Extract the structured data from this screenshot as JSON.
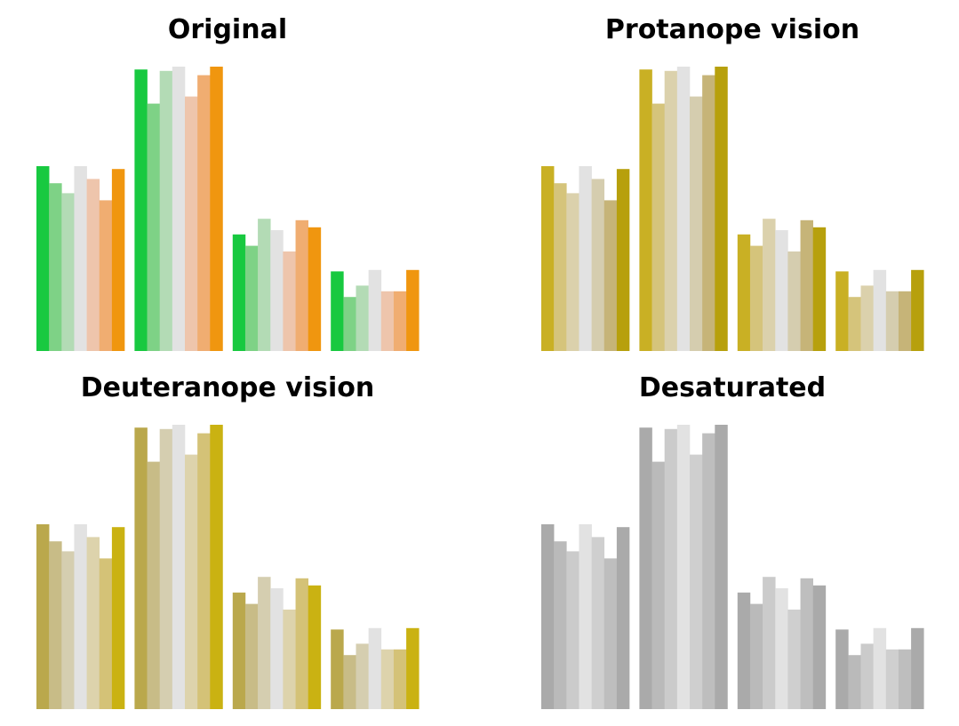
{
  "figure": {
    "panels": [
      {
        "title": "Original"
      },
      {
        "title": "Protanope vision"
      },
      {
        "title": "Deuteranope vision"
      },
      {
        "title": "Desaturated"
      }
    ]
  },
  "chart_data": [
    {
      "type": "bar",
      "title": "Original",
      "categories": [
        "",
        "",
        "",
        ""
      ],
      "ylim": [
        0,
        1.0
      ],
      "grid": false,
      "axes_visible": false,
      "series": [
        {
          "color": "#18c940",
          "values": [
            0.65,
            0.99,
            0.41,
            0.28
          ]
        },
        {
          "color": "#7ed286",
          "values": [
            0.59,
            0.87,
            0.37,
            0.19
          ]
        },
        {
          "color": "#b3dbb5",
          "values": [
            0.555,
            0.985,
            0.465,
            0.23
          ]
        },
        {
          "color": "#e2e2e2",
          "values": [
            0.65,
            1.0,
            0.425,
            0.285
          ]
        },
        {
          "color": "#eec5ac",
          "values": [
            0.605,
            0.895,
            0.35,
            0.21
          ]
        },
        {
          "color": "#f0ad71",
          "values": [
            0.53,
            0.97,
            0.46,
            0.21
          ]
        },
        {
          "color": "#f0960f",
          "values": [
            0.64,
            1.0,
            0.435,
            0.285
          ]
        }
      ]
    },
    {
      "type": "bar",
      "title": "Protanope vision",
      "categories": [
        "",
        "",
        "",
        ""
      ],
      "ylim": [
        0,
        1.0
      ],
      "grid": false,
      "axes_visible": false,
      "series": [
        {
          "color": "#c9b024",
          "values": [
            0.65,
            0.99,
            0.41,
            0.28
          ]
        },
        {
          "color": "#d5c47b",
          "values": [
            0.59,
            0.87,
            0.37,
            0.19
          ]
        },
        {
          "color": "#dbd1ac",
          "values": [
            0.555,
            0.985,
            0.465,
            0.23
          ]
        },
        {
          "color": "#e2e2e2",
          "values": [
            0.65,
            1.0,
            0.425,
            0.285
          ]
        },
        {
          "color": "#d5cdaf",
          "values": [
            0.605,
            0.895,
            0.35,
            0.21
          ]
        },
        {
          "color": "#c6b478",
          "values": [
            0.53,
            0.97,
            0.46,
            0.21
          ]
        },
        {
          "color": "#b7a00c",
          "values": [
            0.64,
            1.0,
            0.435,
            0.285
          ]
        }
      ]
    },
    {
      "type": "bar",
      "title": "Deuteranope vision",
      "categories": [
        "",
        "",
        "",
        ""
      ],
      "ylim": [
        0,
        1.0
      ],
      "grid": false,
      "axes_visible": false,
      "series": [
        {
          "color": "#baa84c",
          "values": [
            0.65,
            0.99,
            0.41,
            0.28
          ]
        },
        {
          "color": "#c8bc87",
          "values": [
            0.59,
            0.87,
            0.37,
            0.19
          ]
        },
        {
          "color": "#d5ceb0",
          "values": [
            0.555,
            0.985,
            0.465,
            0.23
          ]
        },
        {
          "color": "#e2e2e2",
          "values": [
            0.65,
            1.0,
            0.425,
            0.285
          ]
        },
        {
          "color": "#ddd3ac",
          "values": [
            0.605,
            0.895,
            0.35,
            0.21
          ]
        },
        {
          "color": "#d4c277",
          "values": [
            0.53,
            0.97,
            0.46,
            0.21
          ]
        },
        {
          "color": "#cab212",
          "values": [
            0.64,
            1.0,
            0.435,
            0.285
          ]
        }
      ]
    },
    {
      "type": "bar",
      "title": "Desaturated",
      "categories": [
        "",
        "",
        "",
        ""
      ],
      "ylim": [
        0,
        1.0
      ],
      "grid": false,
      "axes_visible": false,
      "series": [
        {
          "color": "#aaaaaa",
          "values": [
            0.65,
            0.99,
            0.41,
            0.28
          ]
        },
        {
          "color": "#bababa",
          "values": [
            0.59,
            0.87,
            0.37,
            0.19
          ]
        },
        {
          "color": "#cbcbcb",
          "values": [
            0.555,
            0.985,
            0.465,
            0.23
          ]
        },
        {
          "color": "#e2e2e2",
          "values": [
            0.65,
            1.0,
            0.425,
            0.285
          ]
        },
        {
          "color": "#cfcfcf",
          "values": [
            0.605,
            0.895,
            0.35,
            0.21
          ]
        },
        {
          "color": "#bebebe",
          "values": [
            0.53,
            0.97,
            0.46,
            0.21
          ]
        },
        {
          "color": "#aaaaaa",
          "values": [
            0.64,
            1.0,
            0.435,
            0.285
          ]
        }
      ]
    }
  ]
}
